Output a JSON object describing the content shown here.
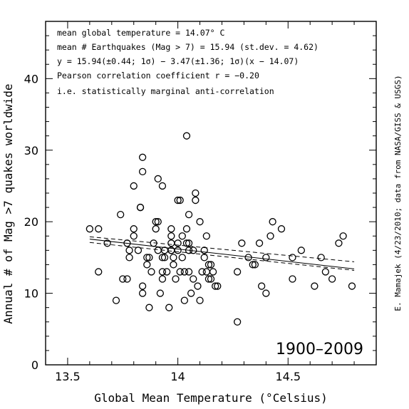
{
  "chart_data": {
    "type": "scatter",
    "xlabel": "Global Mean Temperature (°Celsius)",
    "ylabel": "Annual # of Mag >7 quakes worldwide",
    "right_note": "E. Mamajek (4/23/2010; data from NASA/GISS & USGS)",
    "period_label": "1900–2009",
    "annotations": [
      "mean global temperature = 14.07° C",
      "mean # Earthquakes (Mag > 7) = 15.94 (st.dev. = 4.62)",
      "y = 15.94(±0.44; 1σ) − 3.47(±1.36; 1σ)(x − 14.07)",
      "Pearson correlation coefficient r = −0.20",
      "i.e. statistically marginal anti-correlation"
    ],
    "xlim": [
      13.4,
      14.9
    ],
    "ylim": [
      0,
      48
    ],
    "xticks": [
      13.5,
      14,
      14.5
    ],
    "xtick_labels": [
      "13.5",
      "14",
      "14.5"
    ],
    "yticks": [
      0,
      10,
      20,
      30,
      40
    ],
    "ytick_labels": [
      "0",
      "10",
      "20",
      "30",
      "40"
    ],
    "fit": {
      "intercept": 15.94,
      "slope": -3.47,
      "x0": 14.07,
      "x_range": [
        13.6,
        14.8
      ]
    },
    "fit_band": [
      {
        "x": [
          13.6,
          14.8
        ],
        "y": [
          17.9,
          14.4
        ]
      },
      {
        "x": [
          13.6,
          14.8
        ],
        "y": [
          17.1,
          13.2
        ]
      }
    ],
    "points": [
      [
        13.6,
        19
      ],
      [
        13.64,
        13
      ],
      [
        13.64,
        19
      ],
      [
        13.68,
        17
      ],
      [
        13.72,
        9
      ],
      [
        13.74,
        21
      ],
      [
        13.75,
        12
      ],
      [
        13.77,
        12
      ],
      [
        13.77,
        17
      ],
      [
        13.78,
        16
      ],
      [
        13.78,
        15
      ],
      [
        13.8,
        19
      ],
      [
        13.8,
        18
      ],
      [
        13.8,
        25
      ],
      [
        13.82,
        16
      ],
      [
        13.83,
        22
      ],
      [
        13.83,
        22
      ],
      [
        13.84,
        29
      ],
      [
        13.84,
        27
      ],
      [
        13.84,
        11
      ],
      [
        13.84,
        10
      ],
      [
        13.86,
        14
      ],
      [
        13.86,
        15
      ],
      [
        13.87,
        8
      ],
      [
        13.87,
        15
      ],
      [
        13.88,
        13
      ],
      [
        13.89,
        17
      ],
      [
        13.9,
        19
      ],
      [
        13.9,
        20
      ],
      [
        13.91,
        20
      ],
      [
        13.91,
        26
      ],
      [
        13.91,
        16
      ],
      [
        13.92,
        10
      ],
      [
        13.93,
        12
      ],
      [
        13.93,
        13
      ],
      [
        13.93,
        25
      ],
      [
        13.93,
        15
      ],
      [
        13.94,
        15
      ],
      [
        13.94,
        16
      ],
      [
        13.95,
        13
      ],
      [
        13.96,
        8
      ],
      [
        13.97,
        19
      ],
      [
        13.97,
        18
      ],
      [
        13.97,
        16
      ],
      [
        13.97,
        16
      ],
      [
        13.97,
        17
      ],
      [
        13.98,
        14
      ],
      [
        13.98,
        15
      ],
      [
        13.99,
        12
      ],
      [
        14,
        17
      ],
      [
        14,
        23
      ],
      [
        14,
        16
      ],
      [
        14.01,
        23
      ],
      [
        14.01,
        13
      ],
      [
        14.02,
        18
      ],
      [
        14.02,
        15
      ],
      [
        14.03,
        9
      ],
      [
        14.03,
        13
      ],
      [
        14.04,
        32
      ],
      [
        14.04,
        19
      ],
      [
        14.04,
        17
      ],
      [
        14.05,
        21
      ],
      [
        14.05,
        16
      ],
      [
        14.05,
        13
      ],
      [
        14.05,
        17
      ],
      [
        14.06,
        10
      ],
      [
        14.07,
        12
      ],
      [
        14.07,
        16
      ],
      [
        14.08,
        24
      ],
      [
        14.08,
        23
      ],
      [
        14.09,
        11
      ],
      [
        14.1,
        9
      ],
      [
        14.1,
        20
      ],
      [
        14.11,
        13
      ],
      [
        14.12,
        15
      ],
      [
        14.12,
        16
      ],
      [
        14.13,
        13
      ],
      [
        14.13,
        18
      ],
      [
        14.14,
        12
      ],
      [
        14.14,
        14
      ],
      [
        14.15,
        14
      ],
      [
        14.15,
        12
      ],
      [
        14.16,
        13
      ],
      [
        14.17,
        11
      ],
      [
        14.18,
        11
      ],
      [
        14.27,
        6
      ],
      [
        14.27,
        13
      ],
      [
        14.29,
        17
      ],
      [
        14.32,
        15
      ],
      [
        14.34,
        14
      ],
      [
        14.35,
        14
      ],
      [
        14.37,
        17
      ],
      [
        14.38,
        11
      ],
      [
        14.4,
        15
      ],
      [
        14.4,
        10
      ],
      [
        14.42,
        18
      ],
      [
        14.43,
        20
      ],
      [
        14.47,
        19
      ],
      [
        14.52,
        12
      ],
      [
        14.52,
        15
      ],
      [
        14.56,
        16
      ],
      [
        14.62,
        11
      ],
      [
        14.65,
        15
      ],
      [
        14.67,
        13
      ],
      [
        14.7,
        12
      ],
      [
        14.73,
        17
      ],
      [
        14.75,
        18
      ],
      [
        14.79,
        11
      ]
    ]
  }
}
